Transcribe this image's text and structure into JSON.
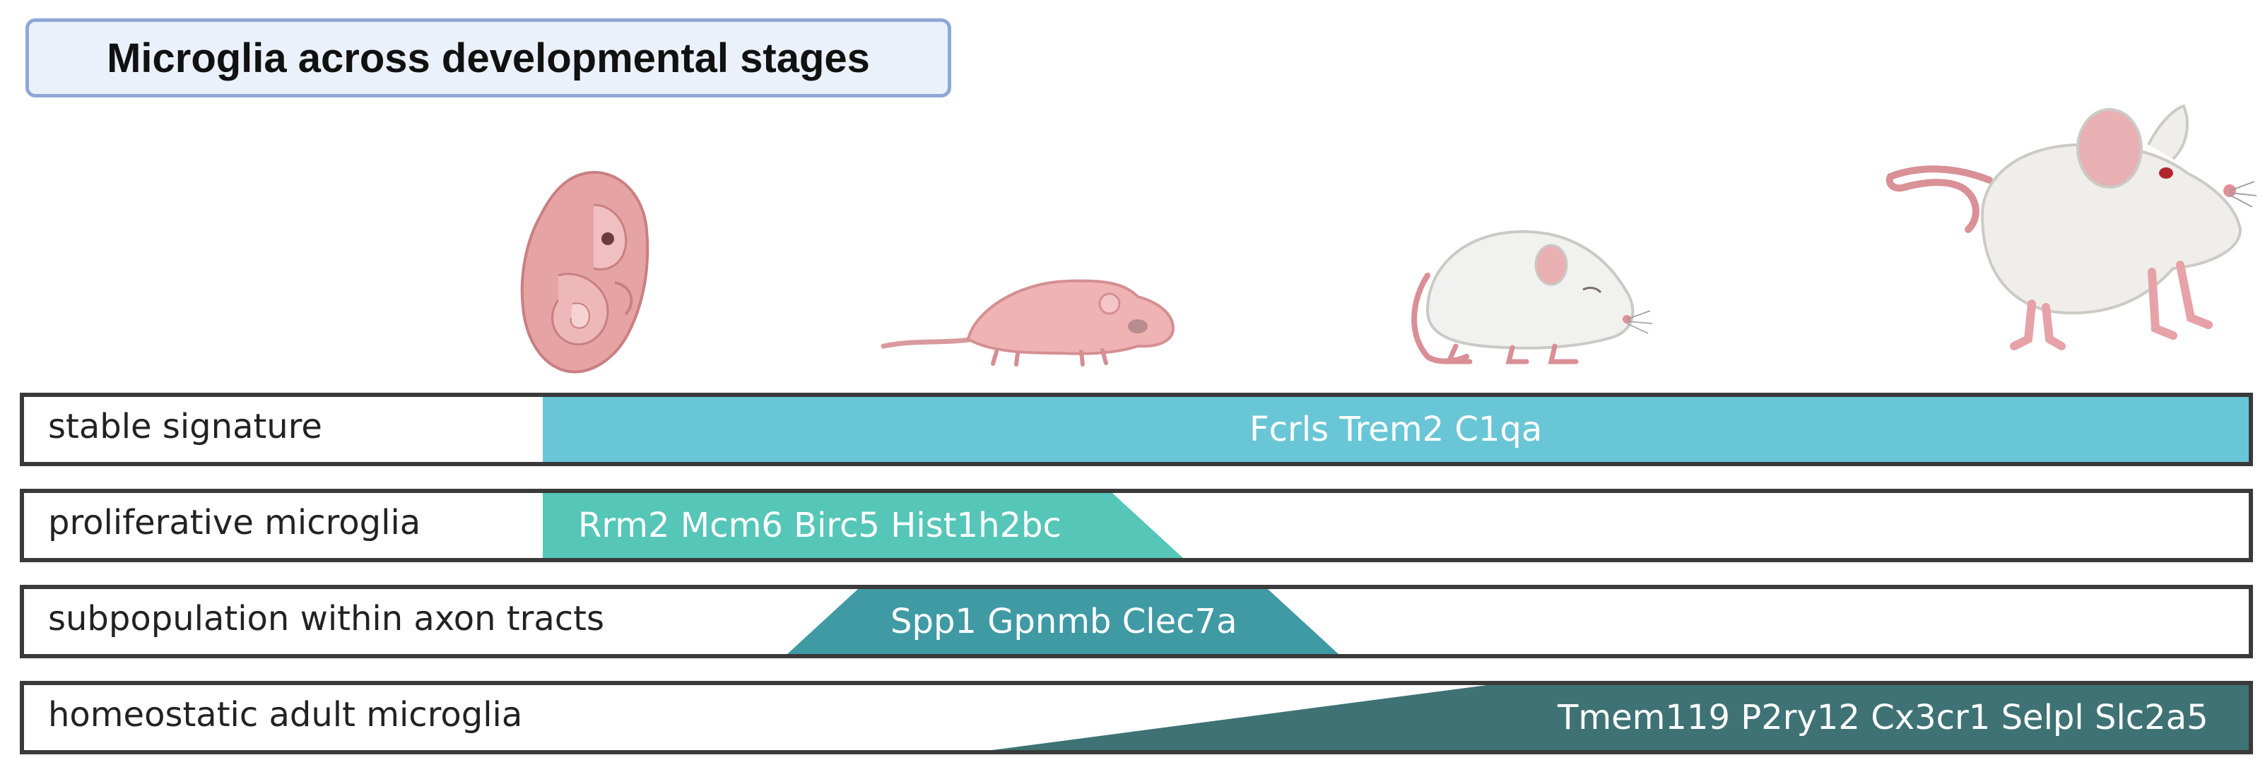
{
  "title": "Microglia across developmental stages",
  "stages": [
    {
      "icon": "embryo-icon"
    },
    {
      "icon": "newborn-pup-icon"
    },
    {
      "icon": "juvenile-mouse-icon"
    },
    {
      "icon": "adult-mouse-icon"
    }
  ],
  "rows": [
    {
      "label": "stable signature",
      "genes": "Fcrls Trem2 C1qa",
      "color": "#69c6d6"
    },
    {
      "label": "proliferative microglia",
      "genes": "Rrm2 Mcm6 Birc5 Hist1h2bc",
      "color": "#55c6b8"
    },
    {
      "label": "subpopulation within axon tracts",
      "genes": "Spp1 Gpnmb Clec7a",
      "color": "#3f9aa4"
    },
    {
      "label": "homeostatic adult microglia",
      "genes": "Tmem119 P2ry12 Cx3cr1 Selpl Slc2a5",
      "color": "#3f7275"
    }
  ],
  "colors": {
    "title_fill": "#eaf1fb",
    "title_border": "#8ea8d6",
    "row_border": "#3a3a3a"
  }
}
